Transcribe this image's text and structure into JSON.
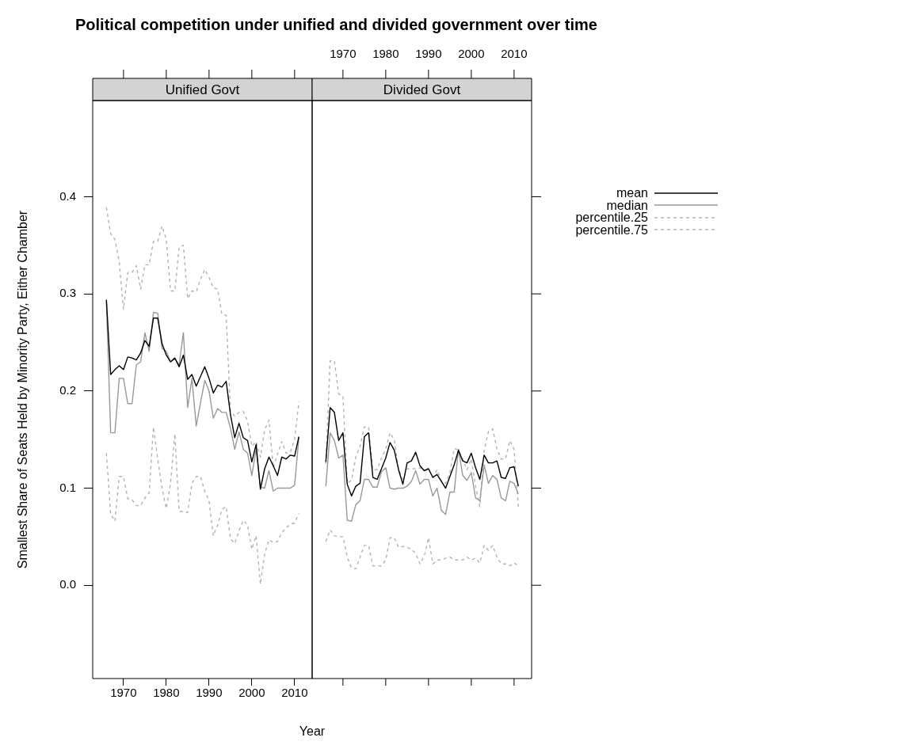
{
  "chart_data": [
    {
      "type": "line",
      "title": "Political competition under unified and divided government over time",
      "subtitle": "Unified Govt",
      "xlabel": "Year",
      "ylabel": "Smallest Share of Seats Held by Minority Party, Either Chamber",
      "x": [
        1966,
        1967,
        1968,
        1969,
        1970,
        1971,
        1972,
        1973,
        1974,
        1975,
        1976,
        1977,
        1978,
        1979,
        1980,
        1981,
        1982,
        1983,
        1984,
        1985,
        1986,
        1987,
        1988,
        1989,
        1990,
        1991,
        1992,
        1993,
        1994,
        1995,
        1996,
        1997,
        1998,
        1999,
        2000,
        2001,
        2002,
        2003,
        2004,
        2005,
        2006,
        2007,
        2008,
        2009,
        2010,
        2011
      ],
      "xlim": [
        1962.8,
        2014.1
      ],
      "xticks": [
        1970,
        1980,
        1990,
        2000,
        2010
      ],
      "ylim": [
        -0.096,
        0.499
      ],
      "yticks": [
        {
          "value": 0,
          "label": "0.0"
        },
        0.1,
        0.2,
        0.3,
        0.4
      ],
      "series": [
        {
          "color": "#000000",
          "values": [
            0.294,
            0.217,
            0.222,
            0.226,
            0.222,
            0.235,
            0.234,
            0.232,
            0.239,
            0.252,
            0.246,
            0.275,
            0.275,
            0.249,
            0.237,
            0.23,
            0.234,
            0.225,
            0.237,
            0.212,
            0.217,
            0.205,
            0.215,
            0.225,
            0.213,
            0.198,
            0.206,
            0.204,
            0.21,
            0.176,
            0.152,
            0.167,
            0.152,
            0.149,
            0.127,
            0.145,
            0.099,
            0.12,
            0.132,
            0.123,
            0.113,
            0.132,
            0.13,
            0.134,
            0.133,
            0.153
          ]
        },
        {
          "color": "#999999",
          "values": [
            0.293,
            0.157,
            0.157,
            0.213,
            0.213,
            0.187,
            0.187,
            0.227,
            0.23,
            0.26,
            0.241,
            0.281,
            0.28,
            0.244,
            0.241,
            0.23,
            0.233,
            0.227,
            0.26,
            0.183,
            0.213,
            0.164,
            0.188,
            0.211,
            0.2,
            0.172,
            0.182,
            0.178,
            0.178,
            0.162,
            0.14,
            0.158,
            0.14,
            0.136,
            0.113,
            0.14,
            0.101,
            0.1,
            0.118,
            0.097,
            0.1,
            0.1,
            0.1,
            0.1,
            0.103,
            0.152
          ]
        },
        {
          "color": "#b3b3b3",
          "line_style": "dashed",
          "values": [
            0.136,
            0.073,
            0.066,
            0.112,
            0.112,
            0.089,
            0.088,
            0.082,
            0.082,
            0.09,
            0.095,
            0.163,
            0.13,
            0.1,
            0.079,
            0.105,
            0.156,
            0.076,
            0.076,
            0.075,
            0.105,
            0.112,
            0.112,
            0.097,
            0.087,
            0.051,
            0.062,
            0.078,
            0.081,
            0.048,
            0.043,
            0.056,
            0.067,
            0.062,
            0.037,
            0.051,
            0.001,
            0.032,
            0.047,
            0.044,
            0.045,
            0.054,
            0.059,
            0.063,
            0.064,
            0.074
          ]
        },
        {
          "color": "#b3b3b3",
          "line_style": "dashed",
          "values": [
            0.389,
            0.362,
            0.356,
            0.333,
            0.284,
            0.322,
            0.322,
            0.329,
            0.305,
            0.33,
            0.33,
            0.354,
            0.354,
            0.37,
            0.356,
            0.303,
            0.303,
            0.348,
            0.35,
            0.295,
            0.303,
            0.302,
            0.315,
            0.325,
            0.317,
            0.306,
            0.305,
            0.279,
            0.278,
            0.18,
            0.174,
            0.178,
            0.179,
            0.169,
            0.143,
            0.148,
            0.132,
            0.16,
            0.17,
            0.121,
            0.135,
            0.148,
            0.136,
            0.137,
            0.15,
            0.189
          ]
        }
      ]
    },
    {
      "type": "line",
      "subtitle": "Divided Govt",
      "legend": "right",
      "tick_labels": "x",
      "x": [
        1966,
        1967,
        1968,
        1969,
        1970,
        1971,
        1972,
        1973,
        1974,
        1975,
        1976,
        1977,
        1978,
        1979,
        1980,
        1981,
        1982,
        1983,
        1984,
        1985,
        1986,
        1987,
        1988,
        1989,
        1990,
        1991,
        1992,
        1993,
        1994,
        1995,
        1996,
        1997,
        1998,
        1999,
        2000,
        2001,
        2002,
        2003,
        2004,
        2005,
        2006,
        2007,
        2008,
        2009,
        2010,
        2011
      ],
      "xlim": [
        1962.8,
        2014.1
      ],
      "xticks": [
        1970,
        1980,
        1990,
        2000,
        2010
      ],
      "ylim": [
        -0.096,
        0.499
      ],
      "yticks": [
        0,
        0.1,
        0.2,
        0.3,
        0.4
      ],
      "series": [
        {
          "name": "mean",
          "color": "#000000",
          "values": [
            0.127,
            0.183,
            0.178,
            0.149,
            0.157,
            0.104,
            0.092,
            0.102,
            0.105,
            0.153,
            0.157,
            0.111,
            0.109,
            0.12,
            0.131,
            0.147,
            0.139,
            0.119,
            0.104,
            0.126,
            0.128,
            0.137,
            0.123,
            0.118,
            0.12,
            0.111,
            0.114,
            0.107,
            0.1,
            0.112,
            0.124,
            0.139,
            0.128,
            0.126,
            0.136,
            0.121,
            0.109,
            0.134,
            0.126,
            0.126,
            0.128,
            0.111,
            0.11,
            0.121,
            0.122,
            0.102
          ]
        },
        {
          "name": "median",
          "color": "#999999",
          "values": [
            0.102,
            0.157,
            0.149,
            0.131,
            0.134,
            0.067,
            0.066,
            0.083,
            0.087,
            0.109,
            0.109,
            0.101,
            0.101,
            0.117,
            0.121,
            0.1,
            0.099,
            0.1,
            0.1,
            0.102,
            0.107,
            0.118,
            0.104,
            0.109,
            0.109,
            0.092,
            0.1,
            0.077,
            0.073,
            0.096,
            0.096,
            0.14,
            0.113,
            0.108,
            0.116,
            0.09,
            0.087,
            0.124,
            0.105,
            0.113,
            0.109,
            0.09,
            0.087,
            0.107,
            0.105,
            0.094
          ]
        },
        {
          "name": "percentile.25",
          "color": "#b3b3b3",
          "line_style": "dashed",
          "values": [
            0.045,
            0.057,
            0.051,
            0.05,
            0.05,
            0.029,
            0.018,
            0.017,
            0.029,
            0.041,
            0.041,
            0.02,
            0.02,
            0.02,
            0.026,
            0.049,
            0.049,
            0.039,
            0.04,
            0.039,
            0.037,
            0.033,
            0.022,
            0.03,
            0.049,
            0.022,
            0.026,
            0.026,
            0.028,
            0.029,
            0.026,
            0.026,
            0.026,
            0.029,
            0.026,
            0.028,
            0.023,
            0.041,
            0.036,
            0.041,
            0.029,
            0.022,
            0.022,
            0.02,
            0.023,
            0.02
          ]
        },
        {
          "name": "percentile.75",
          "color": "#b3b3b3",
          "line_style": "dashed",
          "values": [
            0.125,
            0.231,
            0.231,
            0.197,
            0.195,
            0.105,
            0.108,
            0.132,
            0.143,
            0.163,
            0.163,
            0.119,
            0.119,
            0.131,
            0.14,
            0.157,
            0.15,
            0.119,
            0.109,
            0.12,
            0.12,
            0.12,
            0.121,
            0.118,
            0.119,
            0.111,
            0.119,
            0.107,
            0.105,
            0.116,
            0.141,
            0.139,
            0.13,
            0.119,
            0.13,
            0.102,
            0.081,
            0.139,
            0.158,
            0.161,
            0.14,
            0.13,
            0.13,
            0.149,
            0.14,
            0.081
          ]
        }
      ]
    }
  ]
}
